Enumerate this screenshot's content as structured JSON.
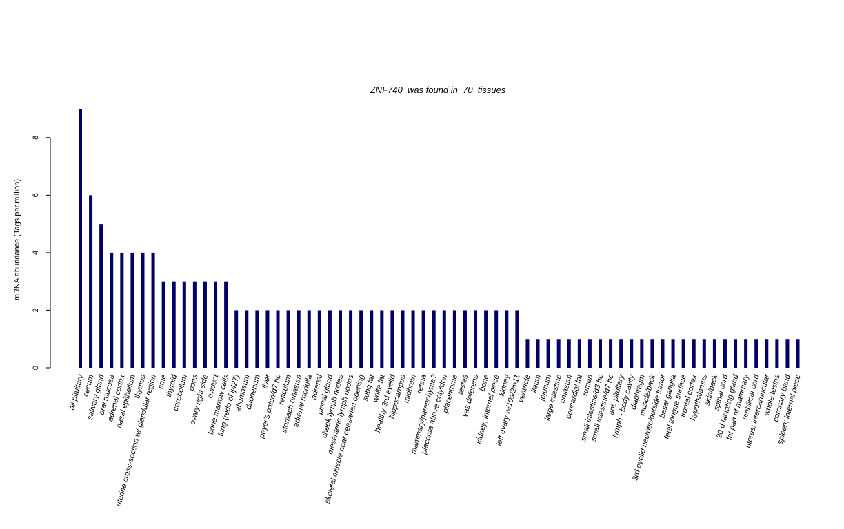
{
  "chart_data": {
    "type": "bar",
    "title_parts": [
      "ZNF740",
      "was found in",
      "70",
      "tissues"
    ],
    "title": "ZNF740  was found in  70  tissues",
    "xlabel": "",
    "ylabel": "mRNA abundance (Tags per million)",
    "ylim": [
      0,
      9
    ],
    "yticks": [
      0,
      2,
      4,
      6,
      8
    ],
    "grid": false,
    "legend": "none",
    "bar_color": "#000066",
    "categories": [
      "all pituitary",
      "cecum",
      "salivary gland",
      "oral mucosa",
      "adrenal cortex",
      "nasal epithelium",
      "thymus",
      "uterine cross-section w/ glandular region",
      "sme",
      "thyroid",
      "cerebellum",
      "pons",
      "ovary right side",
      "oviduct",
      "bone marrow cells",
      "lung (redo of lj427)",
      "abomasum",
      "duodenum",
      "liver",
      "peyer's patch/d7 hc",
      "reticulum",
      "stomach omasum",
      "adrenal medulla",
      "adrenal",
      "pineal gland",
      "cheek lymph nodes",
      "mesenteric lymph nodes",
      "skeletal muscle near ceasarian opening",
      "subq fat",
      "white fat",
      "healthy 3rd eyelid",
      "hippocampus",
      "midbrain",
      "retina",
      "mammary/parenchyma?",
      "placenta above cotyldon",
      "placentome",
      "testes",
      "vas deferens",
      "bone",
      "kidney; internal piece",
      "kidney",
      "left ovary w/10s/2m11",
      "ventricle",
      "ileum",
      "jejunum",
      "large intestine",
      "omasum",
      "pericardial fat",
      "rumen",
      "small intestine/d3 hc",
      "small intestine/d7 hc",
      "ant. pituitary",
      "lymph - body cavity",
      "diaphragm",
      "muscle/back",
      "3rd eyelid necrotic/outside tumor",
      "basal ganglia",
      "fetal tongue surface",
      "frontal cortex",
      "hypothalamus",
      "skin/back",
      "spinal cord",
      "90 d lactating gland",
      "fat pad of mammary",
      "umbilical cord",
      "uterus; intercaruncular",
      "whole testes",
      "coronary band",
      "spleen; internal piece"
    ],
    "values": [
      9,
      6,
      5,
      4,
      4,
      4,
      4,
      4,
      3,
      3,
      3,
      3,
      3,
      3,
      3,
      2,
      2,
      2,
      2,
      2,
      2,
      2,
      2,
      2,
      2,
      2,
      2,
      2,
      2,
      2,
      2,
      2,
      2,
      2,
      2,
      2,
      2,
      2,
      2,
      2,
      2,
      2,
      2,
      1,
      1,
      1,
      1,
      1,
      1,
      1,
      1,
      1,
      1,
      1,
      1,
      1,
      1,
      1,
      1,
      1,
      1,
      1,
      1,
      1,
      1,
      1,
      1,
      1,
      1,
      1
    ]
  }
}
